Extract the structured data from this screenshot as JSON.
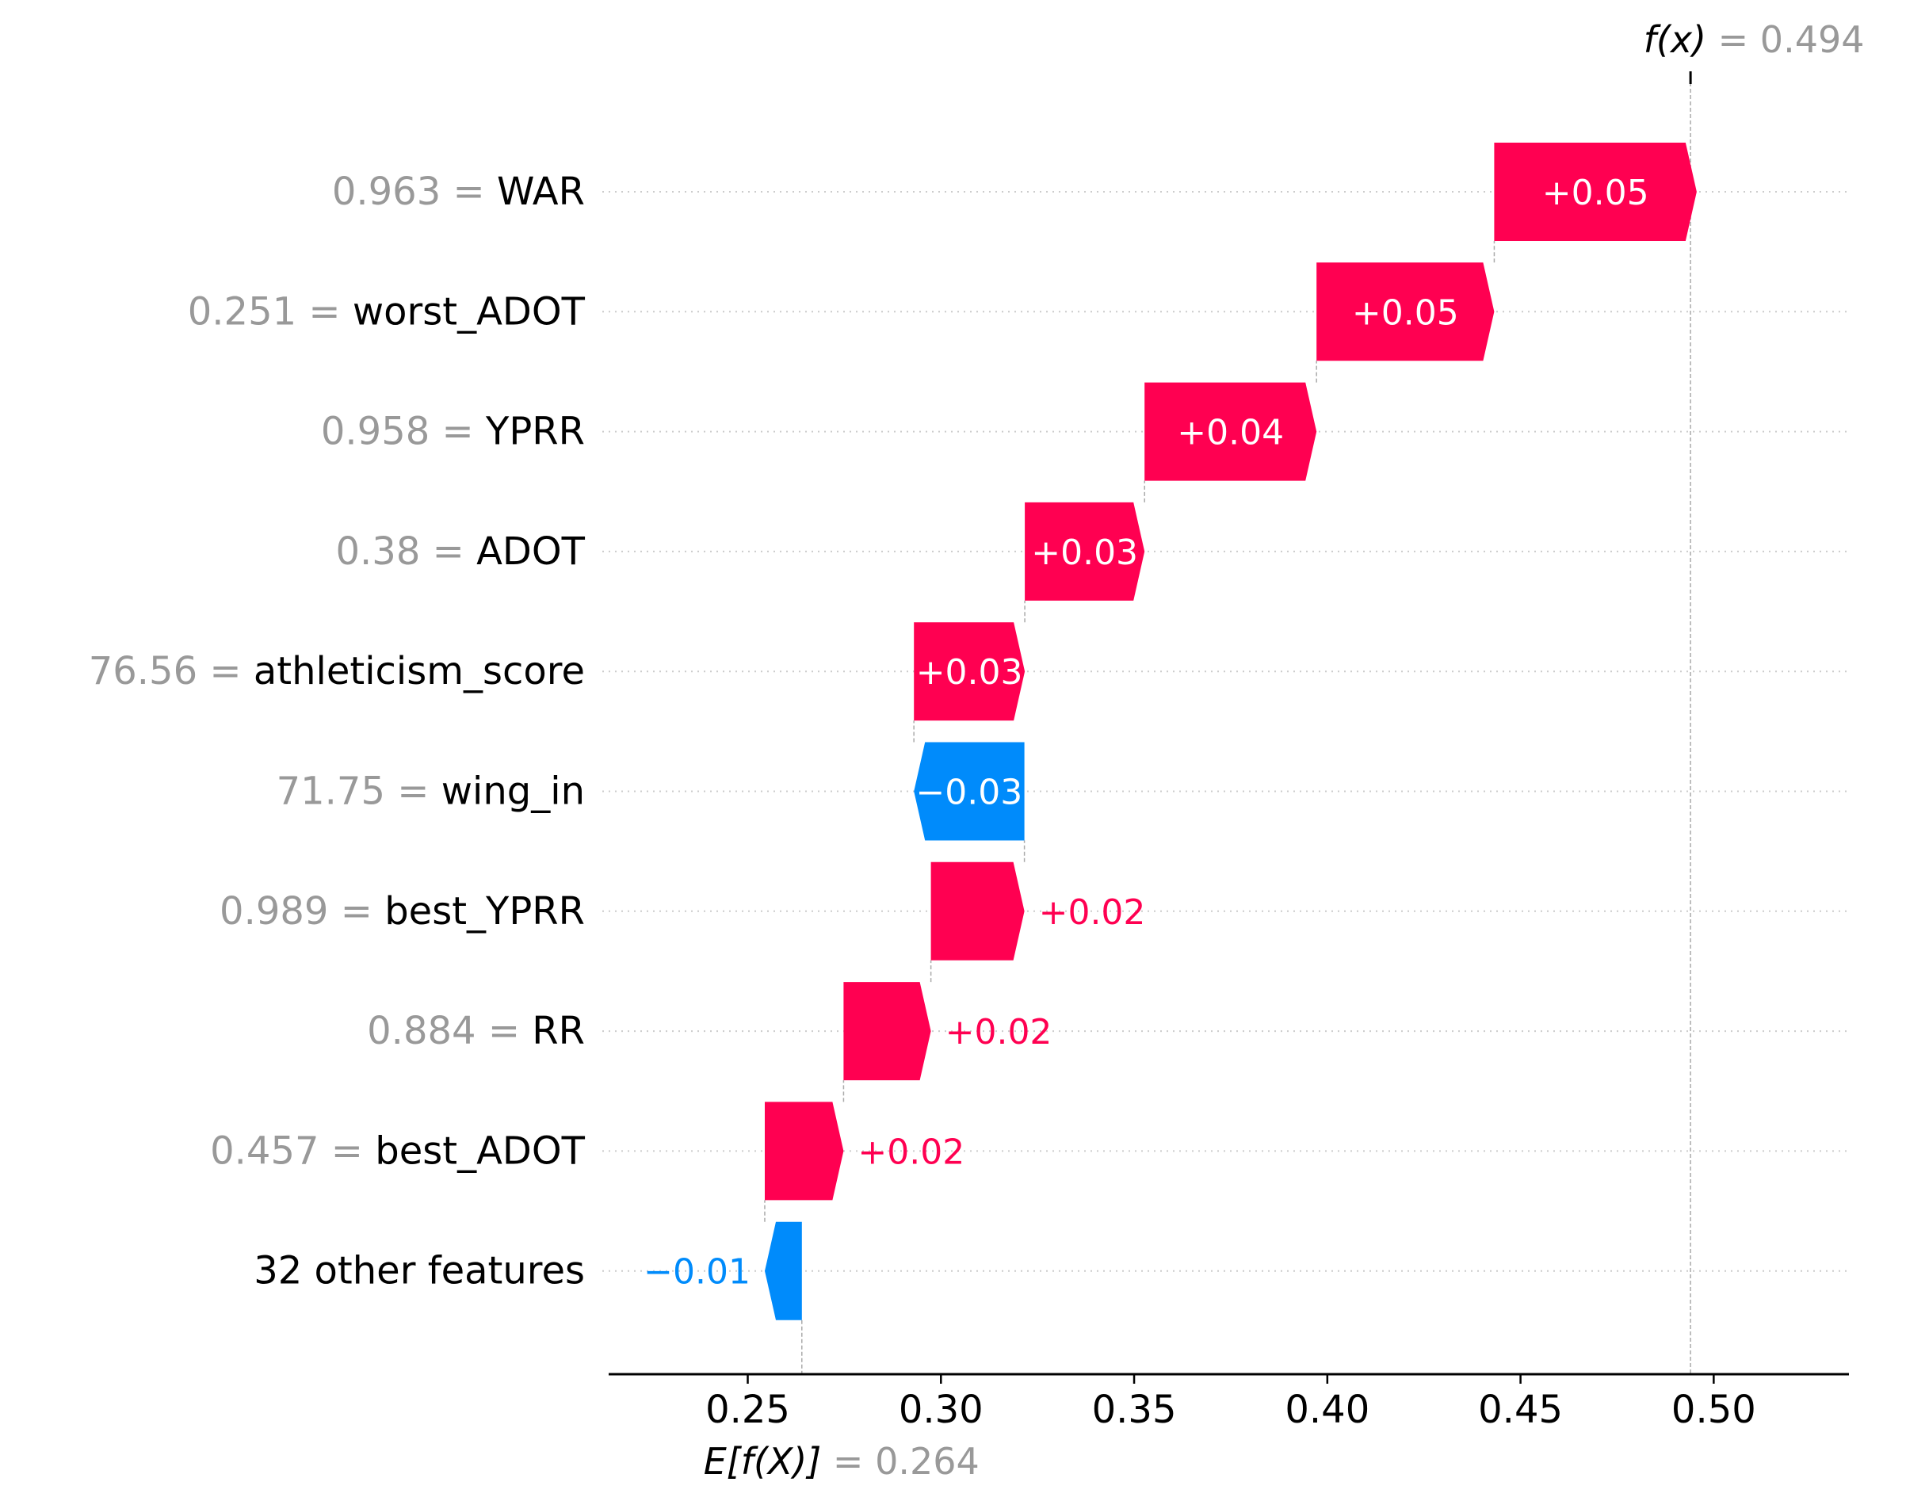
{
  "chart_data": {
    "type": "waterfall",
    "title": "",
    "xlabel": "",
    "ylabel": "",
    "xlim": [
      0.214,
      0.535
    ],
    "xticks": [
      0.25,
      0.3,
      0.35,
      0.4,
      0.45,
      0.5
    ],
    "xtick_labels": [
      "0.25",
      "0.30",
      "0.35",
      "0.40",
      "0.45",
      "0.50"
    ],
    "base_value": 0.264,
    "base_label": "E[f(X)]",
    "base_value_text": "= 0.264",
    "output_value": 0.494,
    "output_label": "f(x)",
    "output_value_text": "= 0.494",
    "positive_color": "#ff0051",
    "negative_color": "#008bfb",
    "features": [
      {
        "value": "0.963",
        "name": "WAR",
        "contribution": 0.0524,
        "label": "+0.05"
      },
      {
        "value": "0.251",
        "name": "worst_ADOT",
        "contribution": 0.046,
        "label": "+0.05"
      },
      {
        "value": "0.958",
        "name": "YPRR",
        "contribution": 0.0445,
        "label": "+0.04"
      },
      {
        "value": "0.38",
        "name": "ADOT",
        "contribution": 0.031,
        "label": "+0.03"
      },
      {
        "value": "76.56",
        "name": "athleticism_score",
        "contribution": 0.0287,
        "label": "+0.03"
      },
      {
        "value": "71.75",
        "name": "wing_in",
        "contribution": -0.0286,
        "label": "−0.03"
      },
      {
        "value": "0.989",
        "name": "best_YPRR",
        "contribution": 0.0242,
        "label": "+0.02"
      },
      {
        "value": "0.884",
        "name": "RR",
        "contribution": 0.0226,
        "label": "+0.02"
      },
      {
        "value": "0.457",
        "name": "best_ADOT",
        "contribution": 0.0204,
        "label": "+0.02"
      },
      {
        "value": "",
        "name": "32 other features",
        "contribution": -0.0096,
        "label": "−0.01"
      }
    ]
  }
}
